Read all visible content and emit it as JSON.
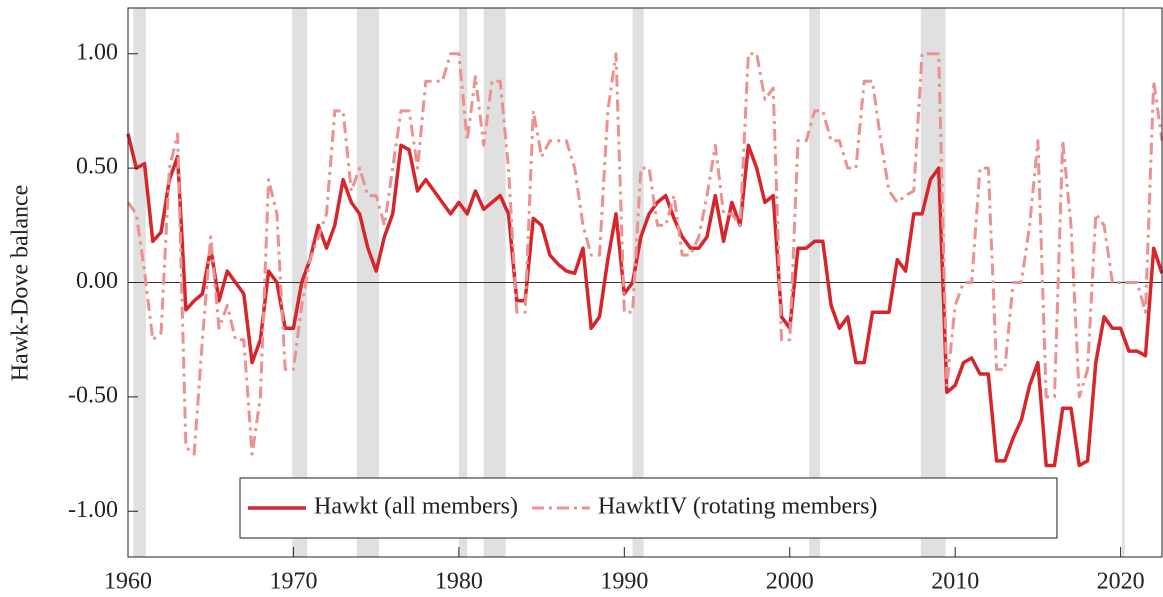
{
  "chart_data": {
    "type": "line",
    "y_label": "Hawk-Dove balance",
    "xlim": [
      1960,
      2022.5
    ],
    "ylim": [
      -1.2,
      1.2
    ],
    "xticks": [
      1960,
      1970,
      1980,
      1990,
      2000,
      2010,
      2020
    ],
    "yticks": [
      {
        "value": 1,
        "label": "1.00"
      },
      {
        "value": 0.5,
        "label": "0.50"
      },
      {
        "value": 0,
        "label": "0.00"
      },
      {
        "value": -0.5,
        "label": "-0.50"
      },
      {
        "value": -1,
        "label": "-1.00"
      }
    ],
    "recessions": [
      [
        1960.33,
        1961.08
      ],
      [
        1969.92,
        1970.83
      ],
      [
        1973.83,
        1975.17
      ],
      [
        1980.0,
        1980.5
      ],
      [
        1981.5,
        1982.83
      ],
      [
        1990.5,
        1991.17
      ],
      [
        2001.17,
        2001.83
      ],
      [
        2007.92,
        2009.42
      ],
      [
        2020.08,
        2020.25
      ]
    ],
    "recession_color": "#e0e0e0",
    "zero_line": 0,
    "x": [
      1960,
      1960.5,
      1961,
      1961.5,
      1962,
      1962.5,
      1963,
      1963.5,
      1964,
      1964.5,
      1965,
      1965.5,
      1966,
      1966.5,
      1967,
      1967.5,
      1968,
      1968.5,
      1969,
      1969.5,
      1970,
      1970.5,
      1971,
      1971.5,
      1972,
      1972.5,
      1973,
      1973.5,
      1974,
      1974.5,
      1975,
      1975.5,
      1976,
      1976.5,
      1977,
      1977.5,
      1978,
      1978.5,
      1979,
      1979.5,
      1980,
      1980.5,
      1981,
      1981.5,
      1982,
      1982.5,
      1983,
      1983.5,
      1984,
      1984.5,
      1985,
      1985.5,
      1986,
      1986.5,
      1987,
      1987.5,
      1988,
      1988.5,
      1989,
      1989.5,
      1990,
      1990.5,
      1991,
      1991.5,
      1992,
      1992.5,
      1993,
      1993.5,
      1994,
      1994.5,
      1995,
      1995.5,
      1996,
      1996.5,
      1997,
      1997.5,
      1998,
      1998.5,
      1999,
      1999.5,
      2000,
      2000.5,
      2001,
      2001.5,
      2002,
      2002.5,
      2003,
      2003.5,
      2004,
      2004.5,
      2005,
      2005.5,
      2006,
      2006.5,
      2007,
      2007.5,
      2008,
      2008.5,
      2009,
      2009.5,
      2010,
      2010.5,
      2011,
      2011.5,
      2012,
      2012.5,
      2013,
      2013.5,
      2014,
      2014.5,
      2015,
      2015.5,
      2016,
      2016.5,
      2017,
      2017.5,
      2018,
      2018.5,
      2019,
      2019.5,
      2020,
      2020.5,
      2021,
      2021.5,
      2022,
      2022.5
    ],
    "series": [
      {
        "name": "Hawkt (all members)",
        "color": "#d7262b",
        "dash": false,
        "values": [
          0.65,
          0.5,
          0.52,
          0.18,
          0.22,
          0.45,
          0.55,
          -0.12,
          -0.08,
          -0.05,
          0.15,
          -0.08,
          0.05,
          0,
          -0.05,
          -0.35,
          -0.25,
          0.05,
          0,
          -0.2,
          -0.2,
          0,
          0.1,
          0.25,
          0.15,
          0.25,
          0.45,
          0.35,
          0.3,
          0.15,
          0.05,
          0.2,
          0.3,
          0.6,
          0.58,
          0.4,
          0.45,
          0.4,
          0.35,
          0.3,
          0.35,
          0.3,
          0.4,
          0.32,
          0.35,
          0.38,
          0.3,
          -0.08,
          -0.08,
          0.28,
          0.25,
          0.12,
          0.08,
          0.05,
          0.04,
          0.15,
          -0.2,
          -0.15,
          0.1,
          0.3,
          -0.05,
          0,
          0.2,
          0.3,
          0.35,
          0.38,
          0.28,
          0.2,
          0.15,
          0.15,
          0.2,
          0.38,
          0.18,
          0.35,
          0.25,
          0.6,
          0.5,
          0.35,
          0.38,
          -0.15,
          -0.2,
          0.15,
          0.15,
          0.18,
          0.18,
          -0.1,
          -0.2,
          -0.15,
          -0.35,
          -0.35,
          -0.13,
          -0.13,
          -0.13,
          0.1,
          0.05,
          0.3,
          0.3,
          0.45,
          0.5,
          -0.48,
          -0.45,
          -0.35,
          -0.33,
          -0.4,
          -0.4,
          -0.78,
          -0.78,
          -0.68,
          -0.6,
          -0.45,
          -0.35,
          -0.8,
          -0.8,
          -0.55,
          -0.55,
          -0.8,
          -0.78,
          -0.35,
          -0.15,
          -0.2,
          -0.2,
          -0.3,
          -0.3,
          -0.32,
          0.15,
          0.04
        ]
      },
      {
        "name": "HawktIV (rotating members)",
        "color": "#ec9090",
        "dash": true,
        "values": [
          0.35,
          0.3,
          0.05,
          -0.25,
          -0.22,
          0.5,
          0.65,
          -0.72,
          -0.75,
          -0.25,
          0.2,
          -0.2,
          -0.1,
          -0.25,
          -0.25,
          -0.75,
          -0.5,
          0.45,
          0.3,
          -0.38,
          -0.38,
          -0.1,
          0.1,
          0.2,
          0.3,
          0.75,
          0.75,
          0.4,
          0.5,
          0.38,
          0.38,
          0.25,
          0.5,
          0.75,
          0.75,
          0.5,
          0.88,
          0.88,
          0.88,
          1,
          1,
          0.62,
          0.9,
          0.6,
          0.88,
          0.88,
          0.5,
          -0.13,
          -0.13,
          0.75,
          0.55,
          0.62,
          0.62,
          0.62,
          0.5,
          0.25,
          0.12,
          0.12,
          0.75,
          1,
          -0.13,
          -0.13,
          0.5,
          0.5,
          0.25,
          0.25,
          0.38,
          0.12,
          0.12,
          0.2,
          0.38,
          0.6,
          0.3,
          0.3,
          0.25,
          1,
          1,
          0.8,
          0.85,
          -0.25,
          -0.25,
          0.62,
          0.62,
          0.75,
          0.75,
          0.62,
          0.62,
          0.5,
          0.5,
          0.88,
          0.88,
          0.62,
          0.4,
          0.35,
          0.38,
          0.4,
          1,
          1,
          1,
          -0.45,
          -0.1,
          0,
          0,
          0.5,
          0.5,
          -0.38,
          -0.38,
          0,
          0,
          0.25,
          0.62,
          -0.5,
          -0.5,
          0.62,
          0.25,
          -0.5,
          -0.38,
          0.3,
          0.25,
          0,
          0,
          0,
          0,
          -0.13,
          0.88,
          0.62
        ]
      }
    ]
  }
}
